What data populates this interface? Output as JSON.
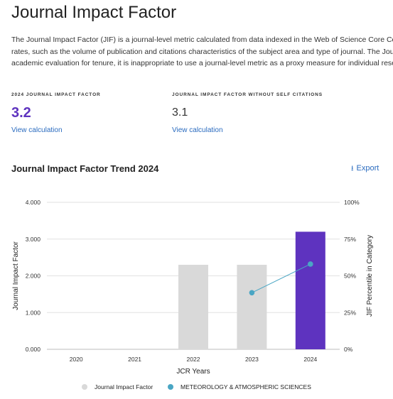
{
  "page": {
    "title": "Journal Impact Factor",
    "description_lines": [
      "The Journal Impact Factor (JIF) is a journal-level metric calculated from data indexed in the Web of Science Core Colle",
      "rates, such as the volume of publication and citations characteristics of the subject area and type of journal. The Jour",
      "academic evaluation for tenure, it is inappropriate to use a journal-level metric as a proxy measure for individual rese"
    ]
  },
  "metrics": {
    "jif": {
      "label": "2024 JOURNAL IMPACT FACTOR",
      "value": "3.2",
      "link": "View calculation"
    },
    "jif_no_self": {
      "label": "JOURNAL IMPACT FACTOR WITHOUT SELF CITATIONS",
      "value": "3.1",
      "link": "View calculation"
    }
  },
  "trend": {
    "title": "Journal Impact Factor Trend 2024",
    "export_label": "Export"
  },
  "chart_data": {
    "type": "bar",
    "categories": [
      "2020",
      "2021",
      "2022",
      "2023",
      "2024"
    ],
    "xlabel": "JCR Years",
    "ylabel": "Journal Impact Factor",
    "ylabel_right": "JIF Percentile in Category",
    "ylim": [
      0,
      4
    ],
    "ylim_right": [
      0,
      100
    ],
    "yticks": [
      "0.000",
      "1.000",
      "2.000",
      "3.000",
      "4.000"
    ],
    "yticks_right": [
      "0%",
      "25%",
      "50%",
      "75%",
      "100%"
    ],
    "series": [
      {
        "name": "Journal Impact Factor",
        "type": "bar",
        "axis": "left",
        "values": [
          null,
          null,
          2.3,
          2.3,
          3.2
        ],
        "color": "#d9d9d9",
        "highlight_color": "#5e33bf"
      },
      {
        "name": "METEOROLOGY & ATMOSPHERIC SCIENCES",
        "type": "line",
        "axis": "right",
        "values": [
          null,
          null,
          null,
          38.5,
          58
        ],
        "color": "#4aa6c4"
      }
    ],
    "grid": true,
    "legend": "bottom"
  }
}
